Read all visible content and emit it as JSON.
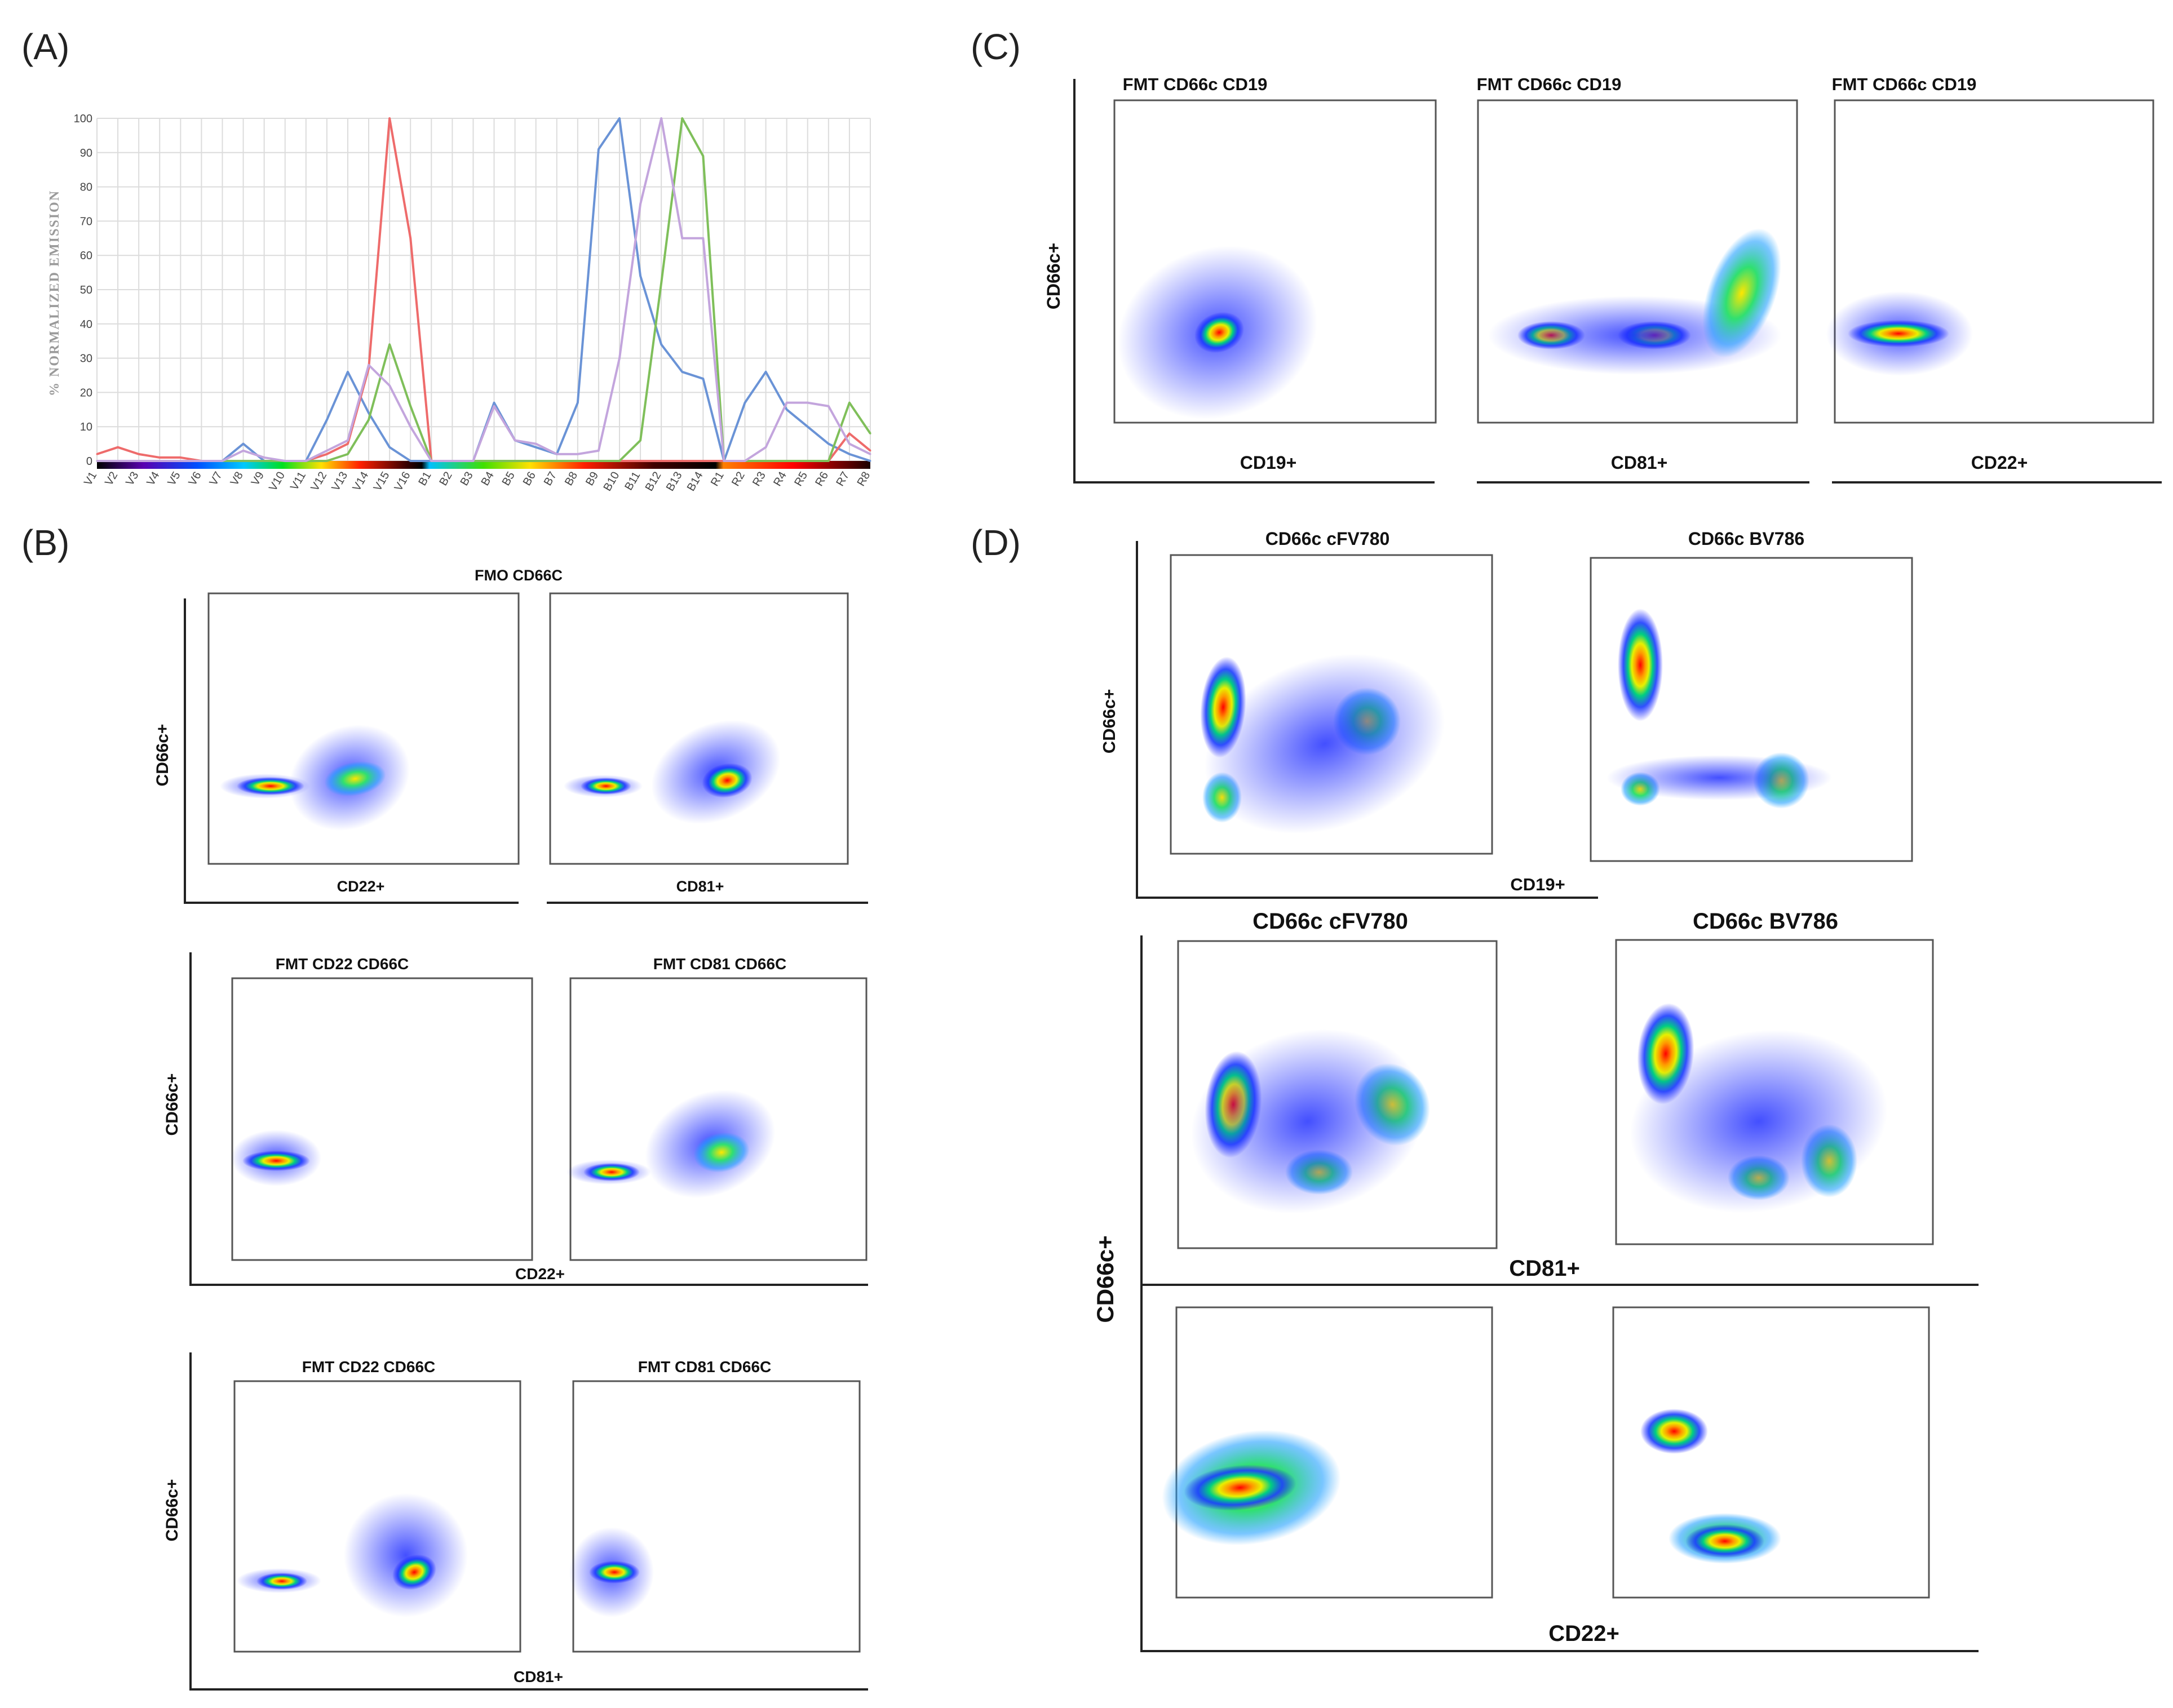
{
  "panel_labels": {
    "A": "(A)",
    "B": "(B)",
    "C": "(C)",
    "D": "(D)"
  },
  "colors": {
    "spectrum_blue": "#6a93d6",
    "spectrum_red": "#ee6b6b",
    "spectrum_green": "#7fbf5a",
    "spectrum_purple": "#c3a5dd",
    "density_low": "#1c1cff",
    "density_high": "#ff0000"
  },
  "chart_data": [
    {
      "id": "A",
      "type": "line",
      "title": "",
      "xlabel": "",
      "ylabel": "% NORMALIZED EMISSION",
      "ylim": [
        0,
        100
      ],
      "yticks": [
        0,
        10,
        20,
        30,
        40,
        50,
        60,
        70,
        80,
        90,
        100
      ],
      "categories": [
        "V1",
        "V2",
        "V3",
        "V4",
        "V5",
        "V6",
        "V7",
        "V8",
        "V9",
        "V10",
        "V11",
        "V12",
        "V13",
        "V14",
        "V15",
        "V16",
        "B1",
        "B2",
        "B3",
        "B4",
        "B5",
        "B6",
        "B7",
        "B8",
        "B9",
        "B10",
        "B11",
        "B12",
        "B13",
        "B14",
        "R1",
        "R2",
        "R3",
        "R4",
        "R5",
        "R6",
        "R7",
        "R8"
      ],
      "series": [
        {
          "name": "blue",
          "color": "#6a93d6",
          "values": [
            0,
            0,
            0,
            0,
            0,
            0,
            0,
            5,
            0,
            0,
            0,
            12,
            26,
            14,
            4,
            0,
            0,
            0,
            0,
            17,
            6,
            4,
            2,
            17,
            91,
            100,
            54,
            34,
            26,
            24,
            0,
            17,
            26,
            15,
            10,
            5,
            2,
            0
          ]
        },
        {
          "name": "red",
          "color": "#ee6b6b",
          "values": [
            2,
            4,
            2,
            1,
            1,
            0,
            0,
            0,
            0,
            0,
            0,
            2,
            5,
            27,
            100,
            65,
            0,
            0,
            0,
            0,
            0,
            0,
            0,
            0,
            0,
            0,
            0,
            0,
            0,
            0,
            0,
            0,
            0,
            0,
            0,
            0,
            8,
            3
          ]
        },
        {
          "name": "green",
          "color": "#7fbf5a",
          "values": [
            0,
            0,
            0,
            0,
            0,
            0,
            0,
            0,
            0,
            0,
            0,
            0,
            2,
            12,
            34,
            16,
            0,
            0,
            0,
            0,
            0,
            0,
            0,
            0,
            0,
            0,
            6,
            52,
            100,
            89,
            0,
            0,
            0,
            0,
            0,
            0,
            17,
            8
          ]
        },
        {
          "name": "purple",
          "color": "#c3a5dd",
          "values": [
            0,
            0,
            0,
            0,
            0,
            0,
            0,
            3,
            1,
            0,
            0,
            3,
            6,
            28,
            22,
            10,
            0,
            0,
            0,
            16,
            6,
            5,
            2,
            2,
            3,
            30,
            75,
            100,
            65,
            65,
            0,
            0,
            4,
            17,
            17,
            16,
            5,
            2
          ]
        }
      ]
    },
    {
      "id": "B",
      "type": "scatter",
      "kind": "flow cytometry density plots",
      "title": "FMO CD66C",
      "ylabel": "CD66c+",
      "rows": [
        {
          "xlabel_left": "CD22+",
          "xlabel_right": "CD81+",
          "titles": [
            "",
            ""
          ]
        },
        {
          "xlabel": "CD22+",
          "titles": [
            "FMT CD22 CD66C",
            "FMT CD81 CD66C"
          ]
        },
        {
          "xlabel": "CD81+",
          "titles": [
            "FMT CD22 CD66C",
            "FMT CD81 CD66C"
          ]
        }
      ]
    },
    {
      "id": "C",
      "type": "scatter",
      "kind": "flow cytometry density plots",
      "ylabel": "CD66c+",
      "panels": [
        {
          "title": "FMT CD66c CD19",
          "xlabel": "CD19+"
        },
        {
          "title": "FMT CD66c CD19",
          "xlabel": "CD81+"
        },
        {
          "title": "FMT CD66c CD19",
          "xlabel": "CD22+"
        }
      ]
    },
    {
      "id": "D",
      "type": "scatter",
      "kind": "flow cytometry density plots",
      "ylabel": "CD66c+",
      "top_titles": [
        "CD66c cFV780",
        "CD66c BV786"
      ],
      "top_xlabel": "CD19+",
      "mid_titles": [
        "CD66c cFV780",
        "CD66c BV786"
      ],
      "mid_xlabel": "CD81+",
      "bottom_xlabel": "CD22+"
    }
  ]
}
